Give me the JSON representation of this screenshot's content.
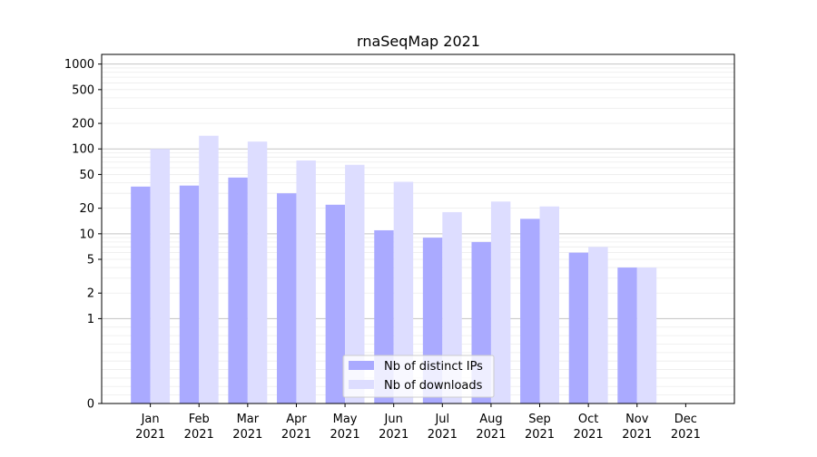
{
  "chart_data": {
    "type": "bar",
    "title": "rnaSeqMap 2021",
    "xlabel": "",
    "ylabel": "",
    "yscale": "symlog",
    "ylim": [
      0,
      1300
    ],
    "y_ticks": [
      0,
      1,
      2,
      5,
      10,
      20,
      50,
      100,
      200,
      500,
      1000
    ],
    "grid": "horizontal",
    "legend_position": "bottom-center",
    "categories": [
      "Jan",
      "Feb",
      "Mar",
      "Apr",
      "May",
      "Jun",
      "Jul",
      "Aug",
      "Sep",
      "Oct",
      "Nov",
      "Dec"
    ],
    "category_sublabel": "2021",
    "series": [
      {
        "name": "Nb of distinct IPs",
        "color": "#aaaaff",
        "values": [
          36,
          37,
          46,
          30,
          22,
          11,
          9,
          8,
          15,
          6,
          4,
          0
        ]
      },
      {
        "name": "Nb of downloads",
        "color": "#ddddff",
        "values": [
          100,
          143,
          122,
          73,
          65,
          41,
          18,
          24,
          21,
          7,
          4,
          0
        ]
      }
    ]
  }
}
